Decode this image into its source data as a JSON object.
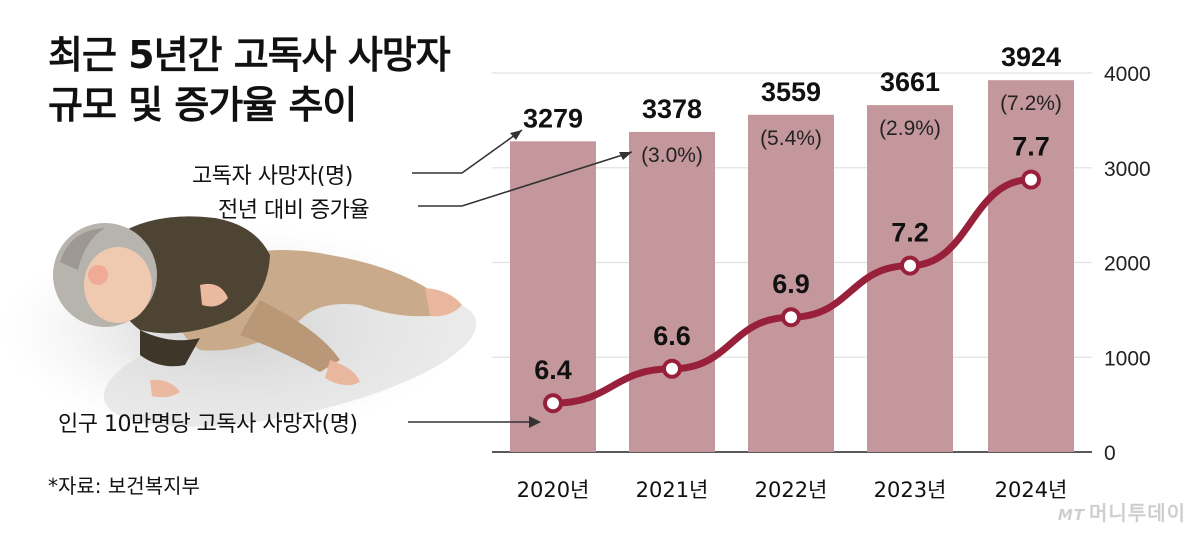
{
  "title_line1": "최근 5년간 고독사 사망자",
  "title_line2": "규모 및 증가율 추이",
  "legend": {
    "deaths": "고독자 사망자(명)",
    "growth": "전년 대비 증가율",
    "rate": "인구 10만명당 고독사 사망자(명)"
  },
  "source": "*자료: 보건복지부",
  "brand": {
    "mt": "MT",
    "name": "머니투데이"
  },
  "colors": {
    "bar": "#c4979c",
    "line": "#98203a",
    "marker_fill": "#ffffff"
  },
  "chart_data": {
    "type": "bar+line",
    "categories": [
      "2020년",
      "2021년",
      "2022년",
      "2023년",
      "2024년"
    ],
    "series": [
      {
        "name": "고독자 사망자(명)",
        "type": "bar",
        "axis": "right",
        "values": [
          3279,
          3378,
          3559,
          3661,
          3924
        ],
        "labels": [
          "3279",
          "3378",
          "3559",
          "3661",
          "3924"
        ]
      },
      {
        "name": "전년 대비 증가율",
        "type": "annotation",
        "labels": [
          "",
          "(3.0%)",
          "(5.4%)",
          "(2.9%)",
          "(7.2%)"
        ]
      },
      {
        "name": "인구 10만명당 고독사 사망자(명)",
        "type": "line",
        "values": [
          6.4,
          6.6,
          6.9,
          7.2,
          7.7
        ],
        "labels": [
          "6.4",
          "6.6",
          "6.9",
          "7.2",
          "7.7"
        ]
      }
    ],
    "right_axis": {
      "ylim": [
        0,
        4000
      ],
      "ticks": [
        "0",
        "1000",
        "2000",
        "3000",
        "4000"
      ]
    },
    "line_scale": [
      6.0,
      8.0
    ],
    "grid": true
  }
}
